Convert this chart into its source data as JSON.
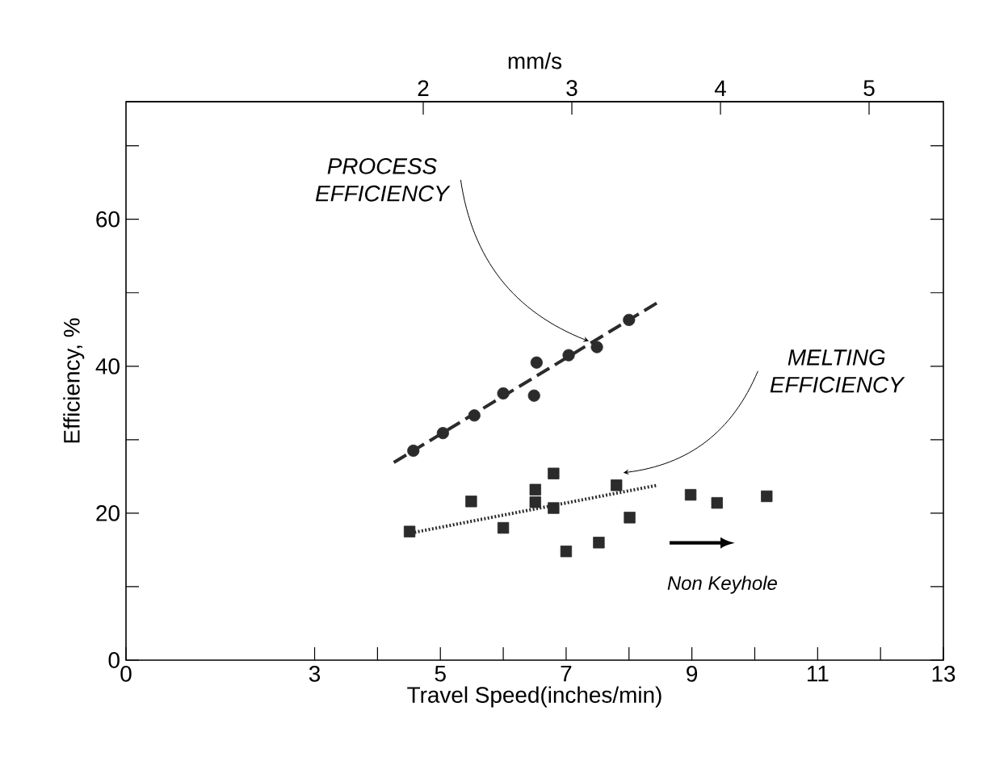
{
  "chart_data": {
    "type": "scatter",
    "xlabel": "Travel Speed(inches/min)",
    "ylabel": "Efficiency, %",
    "x2label": "mm/s",
    "xlim": [
      0,
      13
    ],
    "ylim": [
      0,
      76
    ],
    "x2lim": [
      0,
      5.5
    ],
    "xticks": [
      0,
      3,
      {
        "value": 4,
        "label": null
      },
      5,
      {
        "value": 6,
        "label": null
      },
      7,
      {
        "value": 8,
        "label": null
      },
      9,
      {
        "value": 10,
        "label": null
      },
      11,
      {
        "value": 12,
        "label": null
      },
      13
    ],
    "yticks": [
      0,
      {
        "value": 10,
        "label": null
      },
      20,
      {
        "value": 30,
        "label": null
      },
      40,
      {
        "value": 50,
        "label": null
      },
      60,
      {
        "value": 70,
        "label": null
      }
    ],
    "x2ticks": [
      2,
      3,
      4,
      5
    ],
    "grid": false,
    "series": [
      {
        "type": "scatter",
        "marker": "circle",
        "color": "#2b2b2b",
        "x": [
          4.57,
          5.04,
          5.54,
          6.0,
          6.53,
          6.49,
          7.04,
          7.49,
          8.0
        ],
        "values": [
          28.5,
          30.9,
          33.3,
          36.3,
          40.5,
          36.0,
          41.5,
          42.6,
          46.3
        ]
      },
      {
        "type": "line",
        "line_style": "dashed",
        "color": "#2b2b2b",
        "x": [
          4.26,
          8.52
        ],
        "values": [
          26.9,
          49
        ]
      },
      {
        "type": "scatter",
        "marker": "square",
        "color": "#2b2b2b",
        "x": [
          4.51,
          5.49,
          6.0,
          6.51,
          6.51,
          6.8,
          6.8,
          7.0,
          7.52,
          7.8,
          8.01,
          8.98,
          9.4,
          10.19
        ],
        "values": [
          17.5,
          21.6,
          18.0,
          23.2,
          21.5,
          25.4,
          20.7,
          14.8,
          16.0,
          23.8,
          19.4,
          22.5,
          21.4,
          22.3
        ]
      },
      {
        "type": "line",
        "line_style": "dotted",
        "color": "#2b2b2b",
        "x": [
          4.59,
          8.45
        ],
        "values": [
          17.4,
          23.8
        ]
      }
    ],
    "annotations": [
      {
        "text": "PROCESS EFFICIENCY",
        "x": 7.36,
        "y": 43.4
      },
      {
        "text": "MELTING EFFICIENCY",
        "x": 7.91,
        "y": 25.5
      },
      "Non Keyhole"
    ]
  }
}
